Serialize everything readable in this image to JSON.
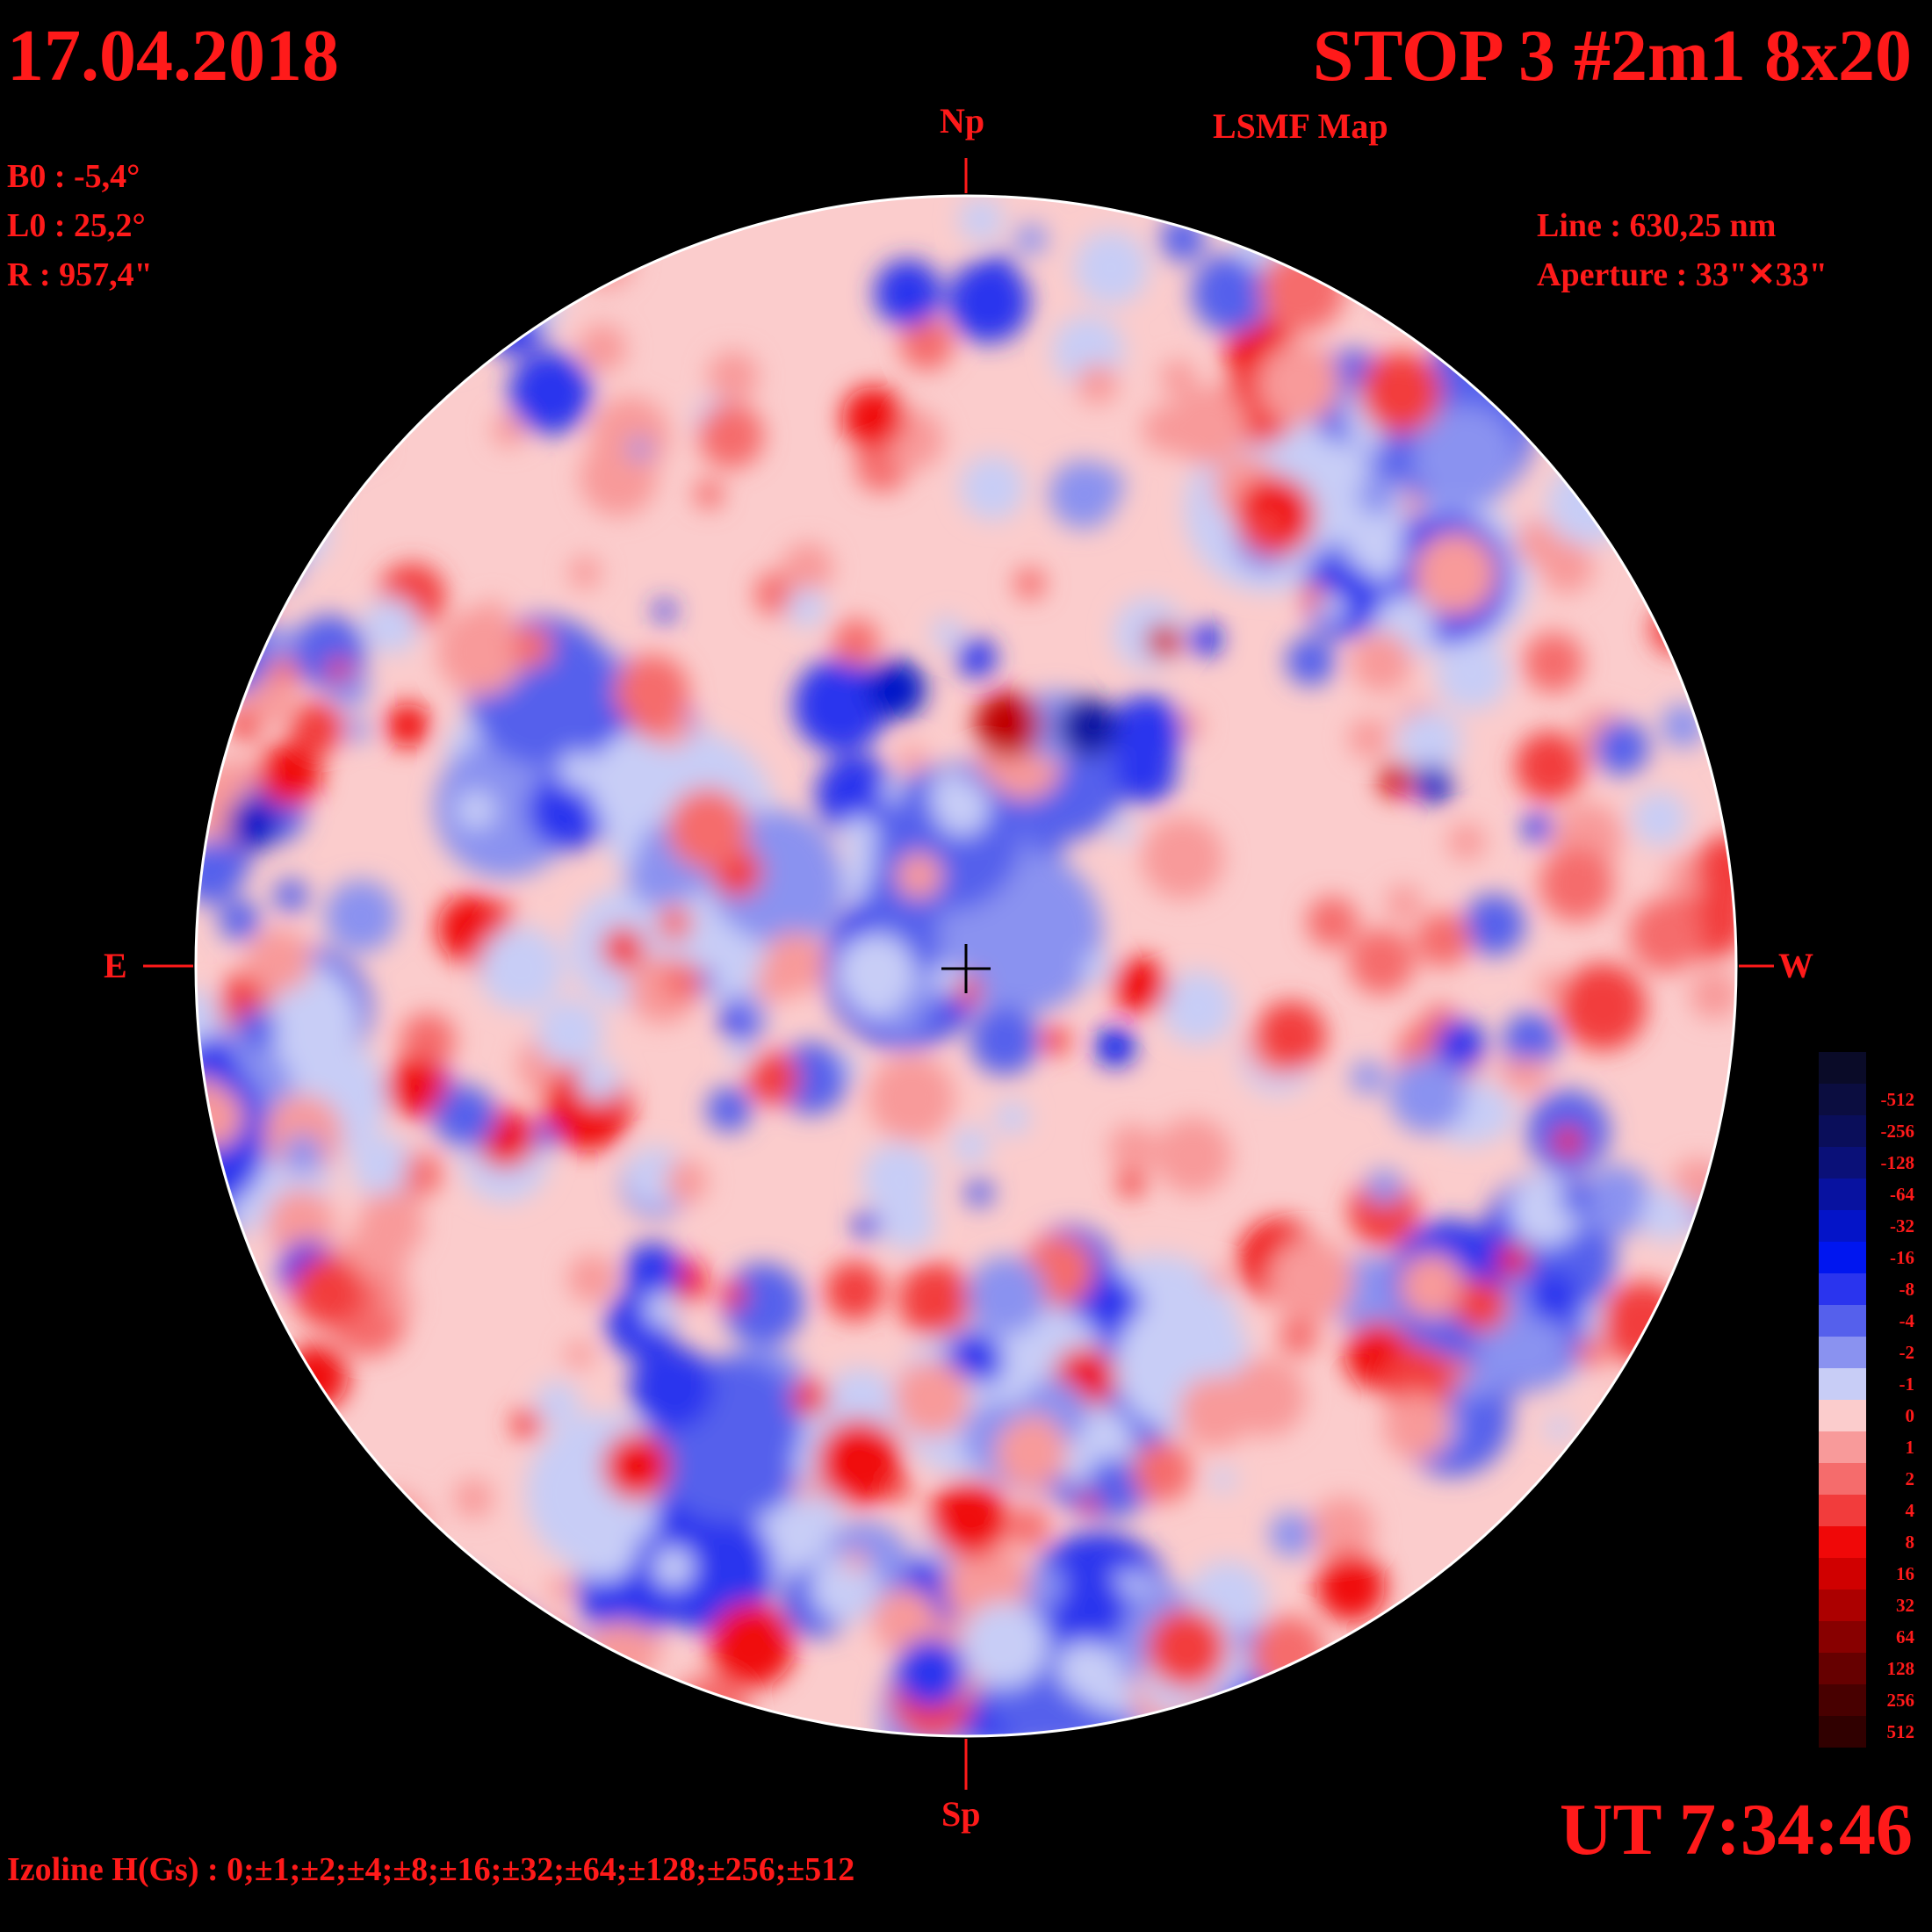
{
  "date": "17.04.2018",
  "title": "STOP 3 #2m1 8x20",
  "subtitle": "LSMF  Map",
  "params": {
    "b0": "B0 : -5,4°",
    "l0": "L0 : 25,2°",
    "r": "R  : 957,4\""
  },
  "instrument": {
    "line": "Line :  630,25 nm",
    "aperture": "Aperture : 33\"✕33\""
  },
  "directions": {
    "north": "Np",
    "south": "Sp",
    "east": "E",
    "west": "W"
  },
  "time": "UT 7:34:46",
  "izoline": "Izoline H(Gs) : 0;±1;±2;±4;±8;±16;±32;±64;±128;±256;±512",
  "legend": [
    {
      "label": "",
      "color": "#0a0b28"
    },
    {
      "label": "-512",
      "color": "#0b0d40"
    },
    {
      "label": "-256",
      "color": "#0a0e5a"
    },
    {
      "label": "-128",
      "color": "#0a1078"
    },
    {
      "label": "-64",
      "color": "#0812a0"
    },
    {
      "label": "-32",
      "color": "#0414c8"
    },
    {
      "label": "-16",
      "color": "#0016f0"
    },
    {
      "label": "-8",
      "color": "#2a34ee"
    },
    {
      "label": "-4",
      "color": "#5560ec"
    },
    {
      "label": "-2",
      "color": "#8a92f0"
    },
    {
      "label": "-1",
      "color": "#c8cdf6"
    },
    {
      "label": "0",
      "color": "#fbcccc"
    },
    {
      "label": "1",
      "color": "#f89a9a"
    },
    {
      "label": "2",
      "color": "#f56c6c"
    },
    {
      "label": "4",
      "color": "#f23c3c"
    },
    {
      "label": "8",
      "color": "#f00808"
    },
    {
      "label": "16",
      "color": "#d00000"
    },
    {
      "label": "32",
      "color": "#ac0000"
    },
    {
      "label": "64",
      "color": "#880000"
    },
    {
      "label": "128",
      "color": "#660000"
    },
    {
      "label": "256",
      "color": "#480000"
    },
    {
      "label": "512",
      "color": "#300000"
    }
  ]
}
